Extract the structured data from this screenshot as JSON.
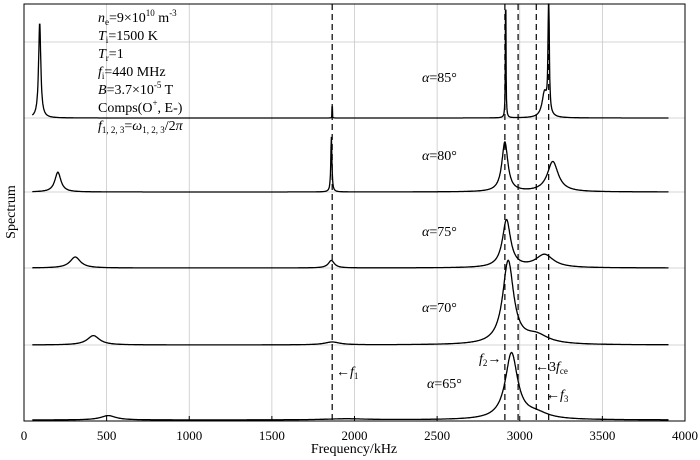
{
  "chart_data": {
    "type": "line",
    "xlabel": "Frequency/kHz",
    "ylabel": "Spectrum",
    "xlim": [
      0,
      4000
    ],
    "xticks": [
      "0",
      "500",
      "1000",
      "1500",
      "2000",
      "2500",
      "3000",
      "3500",
      "4000"
    ],
    "xtick_values": [
      0,
      500,
      1000,
      1500,
      2000,
      2500,
      3000,
      3500,
      4000
    ],
    "grid": true,
    "params": [
      {
        "id": "ne",
        "sym": "n",
        "sub": "e",
        "mid": "=9×10",
        "sup": "10",
        "tail": " m",
        "sup2": "-3"
      },
      {
        "id": "ti",
        "sym": "T",
        "sub": "i",
        "mid": "=1500 K"
      },
      {
        "id": "tr",
        "sym": "T",
        "sub": "r",
        "mid": "=1"
      },
      {
        "id": "fi",
        "sym": "f",
        "sub": "i",
        "mid": "=440 MHz"
      },
      {
        "id": "b",
        "sym": "B",
        "mid": "=3.7×10",
        "sup": "-5",
        "tail": " T"
      },
      {
        "id": "comps",
        "pre": "Comps(O",
        "sup": "+",
        "tail": ", E-)"
      },
      {
        "id": "freqdef",
        "sym": "f",
        "sub": "1, 2, 3",
        "mid": "=",
        "sym2": "ω",
        "sub2": "1, 2, 3",
        "tail": "/2",
        "sym3": "π"
      }
    ],
    "series": [
      {
        "name": "α=85°",
        "greek": "α",
        "label": "=85°",
        "peaks": [
          {
            "f": 95,
            "h": 0.85,
            "w": 8
          },
          {
            "f": 1865,
            "h": 1.2,
            "w": 0.3
          },
          {
            "f": 2915,
            "h": 1.2,
            "w": 2
          },
          {
            "f": 3150,
            "h": 0.22,
            "w": 18
          },
          {
            "f": 3175,
            "h": 1.2,
            "w": 4
          }
        ]
      },
      {
        "name": "α=80°",
        "greek": "α",
        "label": "=80°",
        "peaks": [
          {
            "f": 205,
            "h": 0.36,
            "w": 22
          },
          {
            "f": 1860,
            "h": 1.0,
            "w": 4
          },
          {
            "f": 2910,
            "h": 0.9,
            "w": 22
          },
          {
            "f": 3200,
            "h": 0.55,
            "w": 40
          }
        ]
      },
      {
        "name": "α=75°",
        "greek": "α",
        "label": "=75°",
        "peaks": [
          {
            "f": 310,
            "h": 0.22,
            "w": 38
          },
          {
            "f": 1860,
            "h": 0.15,
            "w": 22
          },
          {
            "f": 2920,
            "h": 0.95,
            "w": 30
          },
          {
            "f": 3150,
            "h": 0.26,
            "w": 65
          }
        ]
      },
      {
        "name": "α=70°",
        "greek": "α",
        "label": "=70°",
        "peaks": [
          {
            "f": 420,
            "h": 0.13,
            "w": 45
          },
          {
            "f": 1865,
            "h": 0.04,
            "w": 55
          },
          {
            "f": 2930,
            "h": 1.15,
            "w": 40
          },
          {
            "f": 3100,
            "h": 0.12,
            "w": 90
          }
        ]
      },
      {
        "name": "α=65°",
        "greek": "α",
        "label": "=65°",
        "peaks": [
          {
            "f": 510,
            "h": 0.08,
            "w": 55
          },
          {
            "f": 1950,
            "h": 0.02,
            "w": 150
          },
          {
            "f": 2950,
            "h": 1.2,
            "w": 45
          },
          {
            "f": 3100,
            "h": 0.1,
            "w": 90
          }
        ]
      }
    ],
    "vlines": [
      1865,
      2910,
      2990,
      3100,
      3175
    ],
    "markers": [
      {
        "id": "f1",
        "arrow": "←",
        "sym": "f",
        "sub": "1"
      },
      {
        "id": "f2",
        "sym": "f",
        "sub": "2",
        "arrow": "→"
      },
      {
        "id": "f3",
        "arrow": "←",
        "sym": "f",
        "sub": "3"
      },
      {
        "id": "fce",
        "arrow": "←",
        "pre": "3",
        "sym": "f",
        "sub": "ce"
      }
    ]
  }
}
